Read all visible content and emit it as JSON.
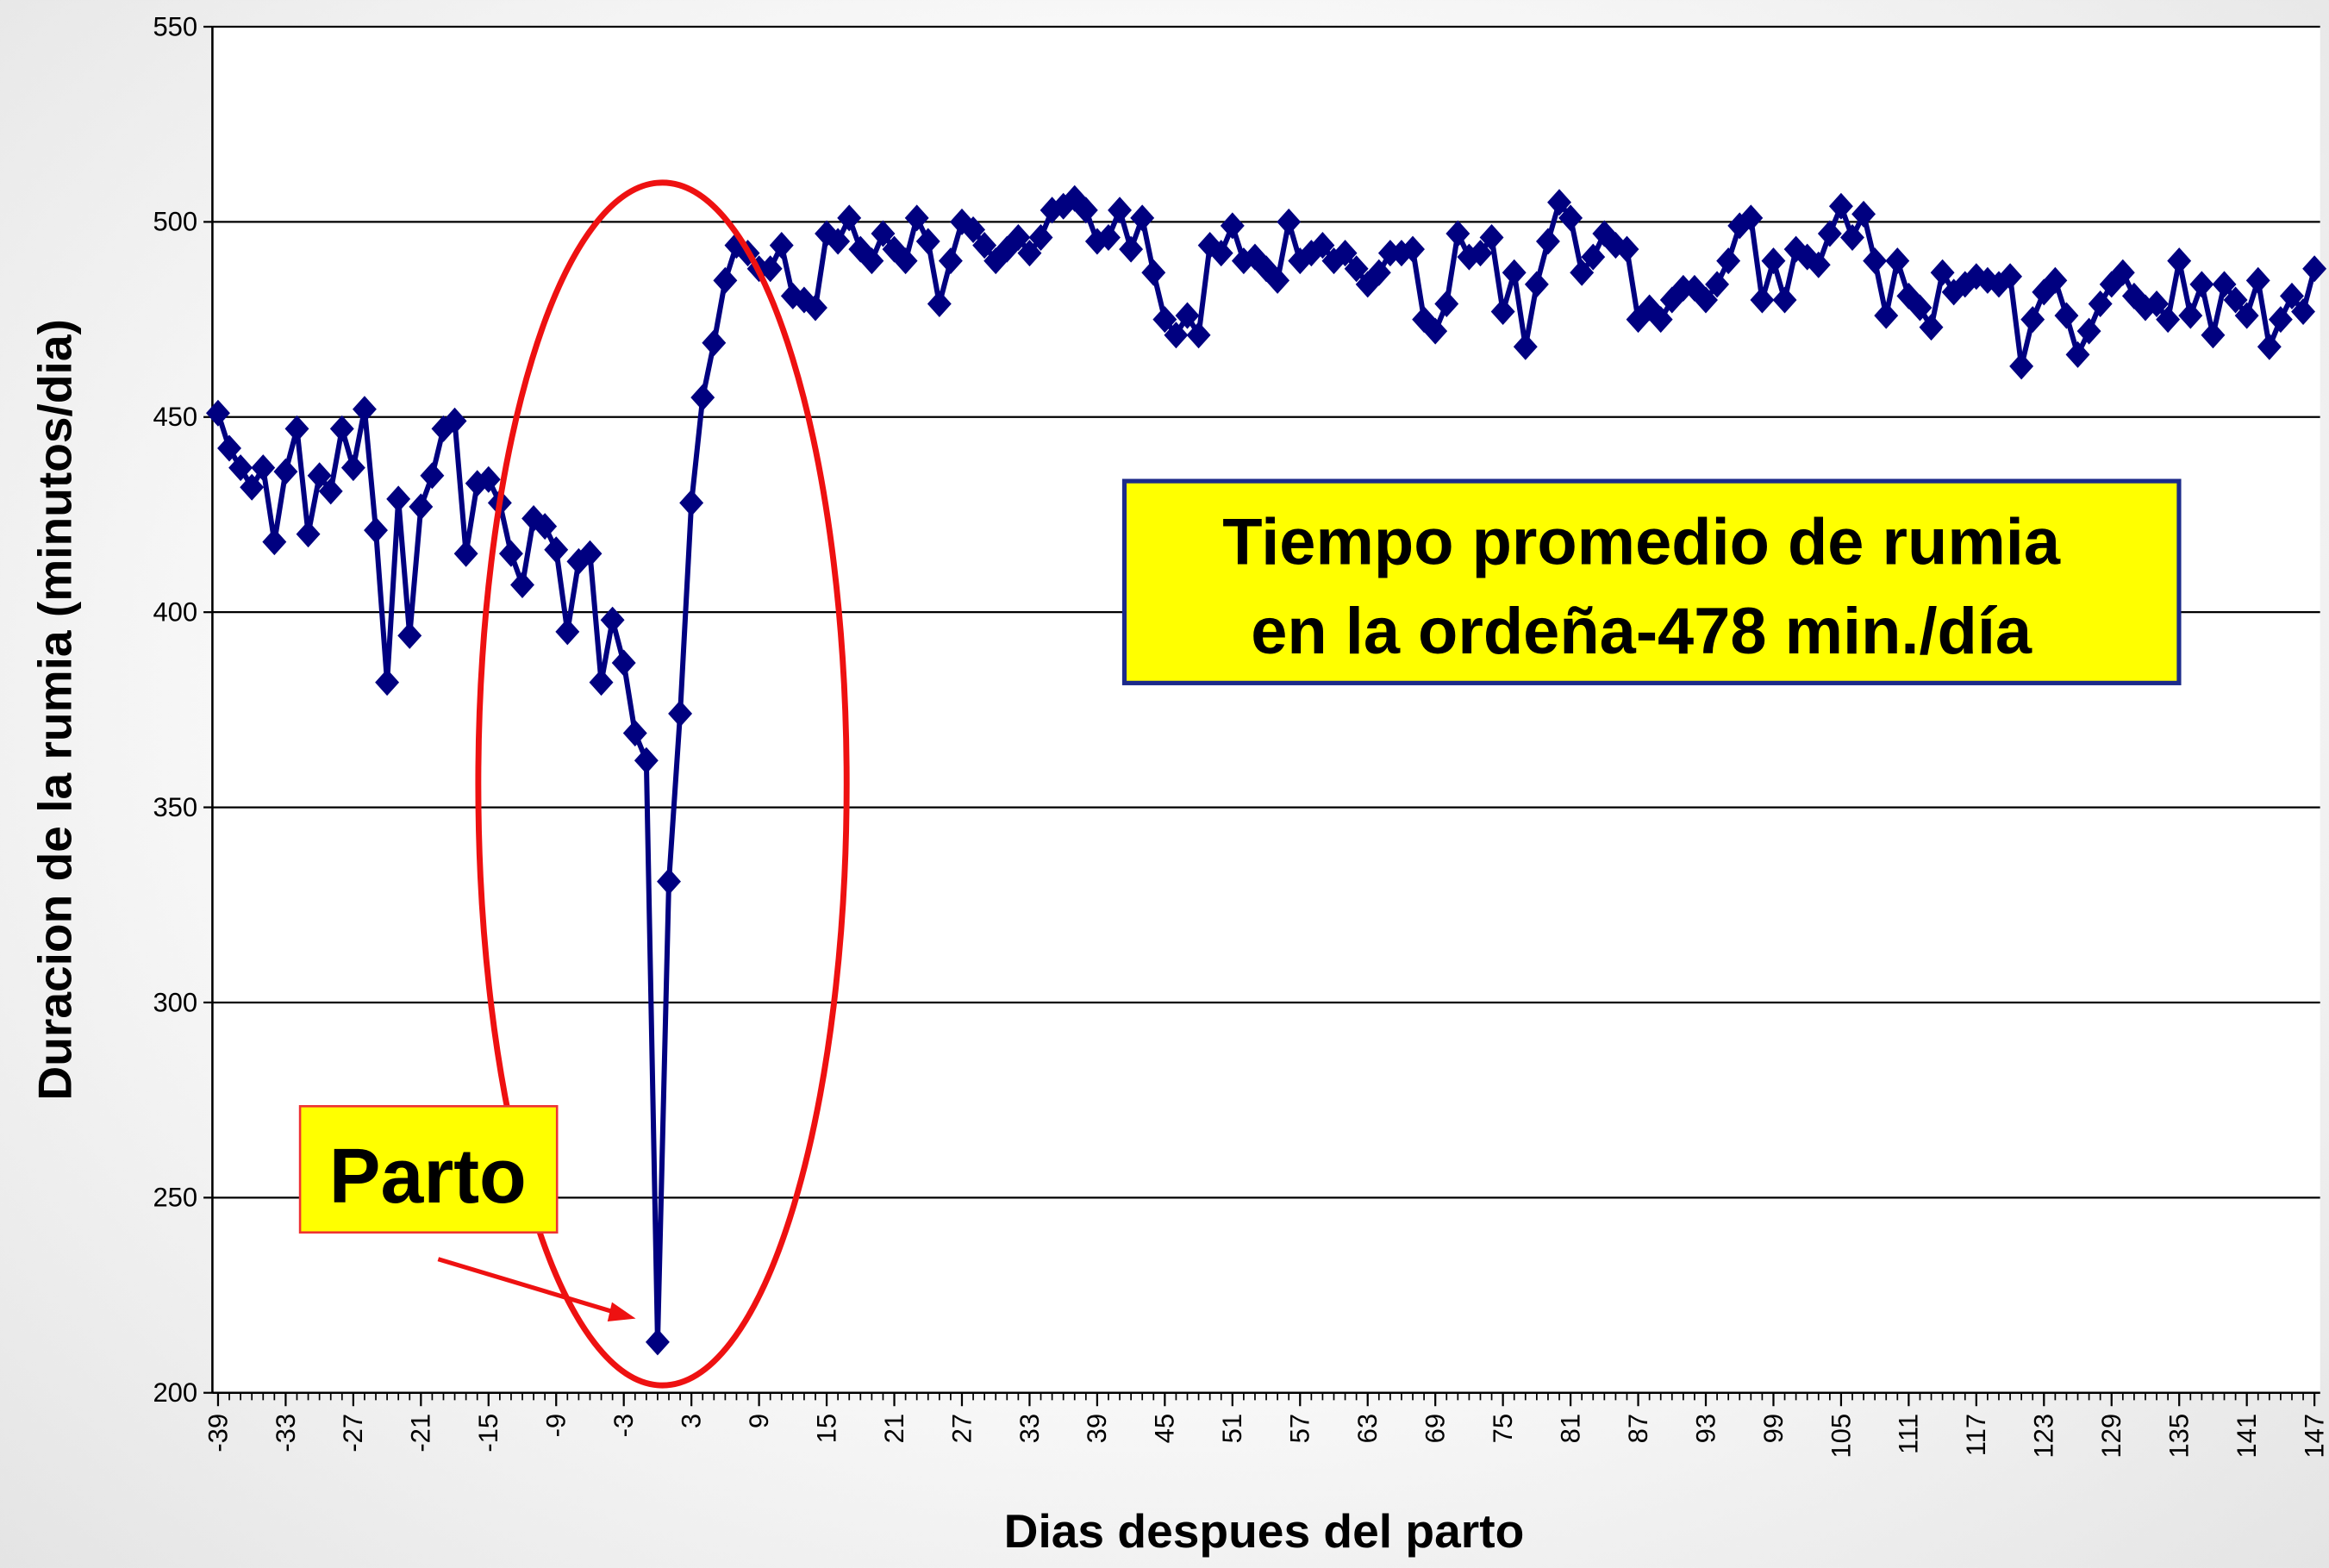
{
  "chart_data": {
    "type": "line",
    "xlabel": "Dias despues del parto",
    "ylabel": "Duracion de la rumia (minutos/dia)",
    "annotations": [
      {
        "lines": [
          "Tiempo promedio de rumia",
          "en la ordeña-478 min./día"
        ]
      },
      {
        "lines": [
          "Parto"
        ]
      }
    ],
    "x": [
      -39,
      -38,
      -37,
      -36,
      -35,
      -34,
      -33,
      -32,
      -31,
      -30,
      -29,
      -28,
      -27,
      -26,
      -25,
      -24,
      -23,
      -22,
      -21,
      -20,
      -19,
      -18,
      -17,
      -16,
      -15,
      -14,
      -13,
      -12,
      -11,
      -10,
      -9,
      -8,
      -7,
      -6,
      -5,
      -4,
      -3,
      -2,
      -1,
      0,
      1,
      2,
      3,
      4,
      5,
      6,
      7,
      8,
      9,
      10,
      11,
      12,
      13,
      14,
      15,
      16,
      17,
      18,
      19,
      20,
      21,
      22,
      23,
      24,
      25,
      26,
      27,
      28,
      29,
      30,
      31,
      32,
      33,
      34,
      35,
      36,
      37,
      38,
      39,
      40,
      41,
      42,
      43,
      44,
      45,
      46,
      47,
      48,
      49,
      50,
      51,
      52,
      53,
      54,
      55,
      56,
      57,
      58,
      59,
      60,
      61,
      62,
      63,
      64,
      65,
      66,
      67,
      68,
      69,
      70,
      71,
      72,
      73,
      74,
      75,
      76,
      77,
      78,
      79,
      80,
      81,
      82,
      83,
      84,
      85,
      86,
      87,
      88,
      89,
      90,
      91,
      92,
      93,
      94,
      95,
      96,
      97,
      98,
      99,
      100,
      101,
      102,
      103,
      104,
      105,
      106,
      107,
      108,
      109,
      110,
      111,
      112,
      113,
      114,
      115,
      116,
      117,
      118,
      119,
      120,
      121,
      122,
      123,
      124,
      125,
      126,
      127,
      128,
      129,
      130,
      131,
      132,
      133,
      134,
      135,
      136,
      137,
      138,
      139,
      140,
      141,
      142,
      143,
      144,
      145,
      146,
      147
    ],
    "series": [
      {
        "name": "Duracion de la rumia",
        "color": "#000080",
        "values": [
          451,
          442,
          437,
          432,
          437,
          418,
          436,
          447,
          420,
          435,
          431,
          447,
          437,
          452,
          421,
          382,
          429,
          394,
          427,
          435,
          447,
          449,
          415,
          433,
          434,
          428,
          415,
          407,
          424,
          422,
          416,
          395,
          413,
          415,
          382,
          398,
          387,
          369,
          362,
          213,
          331,
          374,
          428,
          455,
          469,
          485,
          494,
          492,
          488,
          488,
          494,
          481,
          480,
          478,
          497,
          495,
          501,
          493,
          490,
          497,
          493,
          490,
          501,
          495,
          479,
          490,
          500,
          498,
          494,
          490,
          493,
          496,
          492,
          496,
          503,
          504,
          506,
          503,
          495,
          496,
          503,
          493,
          501,
          487,
          475,
          471,
          476,
          471,
          494,
          492,
          499,
          490,
          491,
          488,
          485,
          500,
          490,
          492,
          494,
          490,
          492,
          488,
          484,
          487,
          492,
          492,
          493,
          475,
          472,
          479,
          497,
          491,
          492,
          496,
          477,
          487,
          468,
          484,
          495,
          505,
          501,
          487,
          491,
          497,
          494,
          493,
          475,
          478,
          475,
          480,
          483,
          483,
          480,
          484,
          490,
          499,
          501,
          480,
          490,
          480,
          493,
          491,
          489,
          497,
          504,
          496,
          502,
          490,
          476,
          490,
          481,
          478,
          473,
          487,
          482,
          484,
          486,
          485,
          484,
          486,
          463,
          475,
          482,
          485,
          476,
          466,
          472,
          479,
          484,
          487,
          481,
          478,
          479,
          475,
          490,
          476,
          484,
          471,
          484,
          480,
          476,
          485,
          468,
          475,
          481,
          477,
          488
        ]
      }
    ],
    "xlim": [
      -39.5,
      147.5
    ],
    "xticks": [
      -39,
      -33,
      -27,
      -21,
      -15,
      -9,
      -3,
      3,
      9,
      15,
      21,
      27,
      33,
      39,
      45,
      51,
      57,
      63,
      69,
      75,
      81,
      87,
      93,
      99,
      105,
      111,
      117,
      123,
      129,
      135,
      141,
      147
    ],
    "ylim": [
      200,
      550
    ],
    "yticks": [
      200,
      250,
      300,
      350,
      400,
      450,
      500,
      550
    ],
    "grid": true
  }
}
